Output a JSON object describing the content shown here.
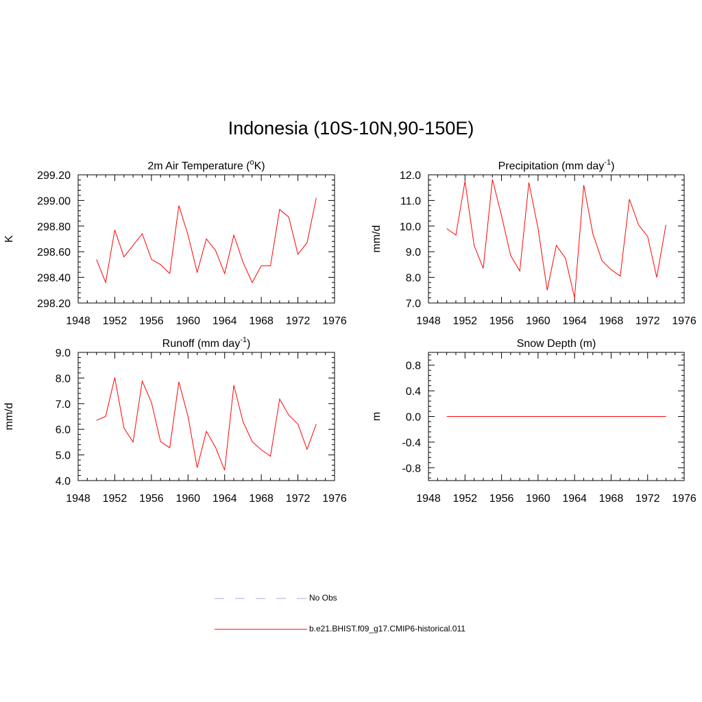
{
  "title": "Indonesia (10S-10N,90-150E)",
  "x_ticks": [
    "1948",
    "1952",
    "1956",
    "1960",
    "1964",
    "1968",
    "1972",
    "1976"
  ],
  "legend": [
    {
      "label": "No Obs",
      "color": "#aaaaee",
      "style": "dashed"
    },
    {
      "label": "b.e21.BHIST.f09_g17.CMIP6-historical.011",
      "color": "#ff0000",
      "style": "solid"
    }
  ],
  "chart_data": [
    {
      "type": "line",
      "title": "2m Air Temperature (",
      "title_sup": "o",
      "title_suffix": "K)",
      "ylabel": "K",
      "xlim": [
        1948,
        1976
      ],
      "ylim": [
        298.2,
        299.2
      ],
      "y_ticks": [
        "298.20",
        "298.40",
        "298.60",
        "298.80",
        "299.00",
        "299.20"
      ],
      "x": [
        1950,
        1951,
        1952,
        1953,
        1954,
        1955,
        1956,
        1957,
        1958,
        1959,
        1960,
        1961,
        1962,
        1963,
        1964,
        1965,
        1966,
        1967,
        1968,
        1969,
        1970,
        1971,
        1972,
        1973,
        1974
      ],
      "series": [
        {
          "color": "#ff0000",
          "values": [
            298.54,
            298.36,
            298.77,
            298.56,
            298.65,
            298.74,
            298.54,
            298.5,
            298.43,
            298.96,
            298.73,
            298.44,
            298.7,
            298.61,
            298.43,
            298.73,
            298.52,
            298.36,
            298.49,
            298.49,
            298.93,
            298.87,
            298.58,
            298.67,
            299.02
          ]
        }
      ]
    },
    {
      "type": "line",
      "title": "Precipitation (mm day",
      "title_sup": "-1",
      "title_suffix": ")",
      "ylabel": "mm/d",
      "xlim": [
        1948,
        1976
      ],
      "ylim": [
        7.0,
        12.0
      ],
      "y_ticks": [
        "7.0",
        "8.0",
        "9.0",
        "10.0",
        "11.0",
        "12.0"
      ],
      "x": [
        1950,
        1951,
        1952,
        1953,
        1954,
        1955,
        1956,
        1957,
        1958,
        1959,
        1960,
        1961,
        1962,
        1963,
        1964,
        1965,
        1966,
        1967,
        1968,
        1969,
        1970,
        1971,
        1972,
        1973,
        1974
      ],
      "series": [
        {
          "color": "#ff0000",
          "values": [
            9.9,
            9.65,
            11.75,
            9.25,
            8.35,
            11.82,
            10.4,
            8.85,
            8.25,
            11.7,
            9.9,
            7.5,
            9.25,
            8.75,
            7.2,
            11.6,
            9.7,
            8.65,
            8.3,
            8.05,
            11.05,
            10.05,
            9.6,
            8.0,
            10.05
          ]
        }
      ]
    },
    {
      "type": "line",
      "title": "Runoff (mm day",
      "title_sup": "-1",
      "title_suffix": ")",
      "ylabel": "mm/d",
      "xlim": [
        1948,
        1976
      ],
      "ylim": [
        4.0,
        9.0
      ],
      "y_ticks": [
        "4.0",
        "5.0",
        "6.0",
        "7.0",
        "8.0",
        "9.0"
      ],
      "x": [
        1950,
        1951,
        1952,
        1953,
        1954,
        1955,
        1956,
        1957,
        1958,
        1959,
        1960,
        1961,
        1962,
        1963,
        1964,
        1965,
        1966,
        1967,
        1968,
        1969,
        1970,
        1971,
        1972,
        1973,
        1974
      ],
      "series": [
        {
          "color": "#ff0000",
          "values": [
            6.35,
            6.5,
            8.02,
            6.05,
            5.5,
            7.88,
            7.05,
            5.52,
            5.28,
            7.85,
            6.5,
            4.5,
            5.92,
            5.3,
            4.4,
            7.72,
            6.3,
            5.52,
            5.2,
            4.95,
            7.18,
            6.55,
            6.2,
            5.22,
            6.2
          ]
        }
      ]
    },
    {
      "type": "line",
      "title": "Snow Depth (m)",
      "title_sup": "",
      "title_suffix": "",
      "ylabel": "m",
      "xlim": [
        1948,
        1976
      ],
      "ylim": [
        -1.0,
        1.0
      ],
      "y_ticks": [
        "-0.8",
        "-0.4",
        "0.0",
        "0.4",
        "0.8"
      ],
      "y_tick_values": [
        -0.8,
        -0.4,
        0.0,
        0.4,
        0.8
      ],
      "x": [
        1950,
        1974
      ],
      "series": [
        {
          "color": "#ff0000",
          "values": [
            0.0,
            0.0
          ]
        }
      ]
    }
  ]
}
